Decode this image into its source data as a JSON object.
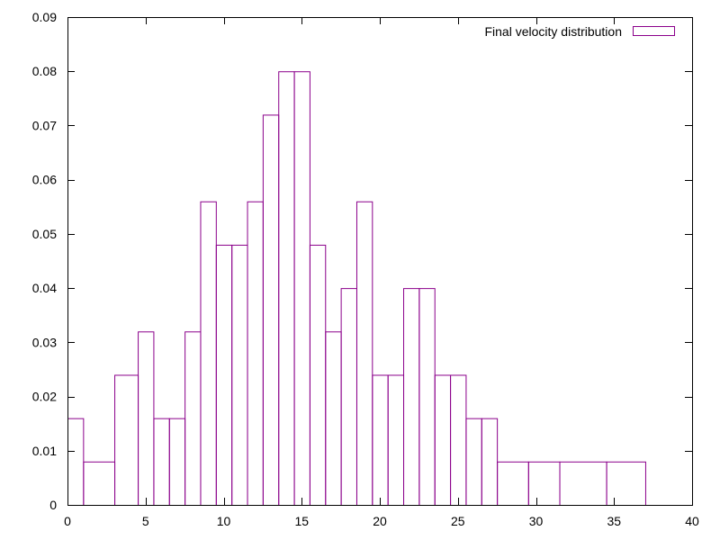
{
  "chart_data": {
    "type": "bar",
    "title": "",
    "xlabel": "",
    "ylabel": "",
    "xlim": [
      0,
      40
    ],
    "ylim": [
      0,
      0.09
    ],
    "x_ticks": [
      0,
      5,
      10,
      15,
      20,
      25,
      30,
      35,
      40
    ],
    "y_ticks": [
      0,
      0.01,
      0.02,
      0.03,
      0.04,
      0.05,
      0.06,
      0.07,
      0.08,
      0.09
    ],
    "x_tick_labels": [
      "0",
      "5",
      "10",
      "15",
      "20",
      "25",
      "30",
      "35",
      "40"
    ],
    "y_tick_labels": [
      "0",
      "0.01",
      "0.02",
      "0.03",
      "0.04",
      "0.05",
      "0.06",
      "0.07",
      "0.08",
      "0.09"
    ],
    "grid": false,
    "legend": {
      "position": "top-right"
    },
    "series": [
      {
        "name": "Final velocity distribution",
        "color": "#8b008b",
        "bins": [
          {
            "x0": 0.0,
            "x1": 1.0,
            "value": 0.016
          },
          {
            "x0": 1.0,
            "x1": 3.0,
            "value": 0.008
          },
          {
            "x0": 3.0,
            "x1": 4.5,
            "value": 0.024
          },
          {
            "x0": 4.5,
            "x1": 5.5,
            "value": 0.032
          },
          {
            "x0": 5.5,
            "x1": 6.5,
            "value": 0.016
          },
          {
            "x0": 6.5,
            "x1": 7.5,
            "value": 0.016
          },
          {
            "x0": 7.5,
            "x1": 8.5,
            "value": 0.032
          },
          {
            "x0": 8.5,
            "x1": 9.5,
            "value": 0.056
          },
          {
            "x0": 9.5,
            "x1": 10.5,
            "value": 0.048
          },
          {
            "x0": 10.5,
            "x1": 11.5,
            "value": 0.048
          },
          {
            "x0": 11.5,
            "x1": 12.5,
            "value": 0.056
          },
          {
            "x0": 12.5,
            "x1": 13.5,
            "value": 0.072
          },
          {
            "x0": 13.5,
            "x1": 14.5,
            "value": 0.08
          },
          {
            "x0": 14.5,
            "x1": 15.5,
            "value": 0.08
          },
          {
            "x0": 15.5,
            "x1": 16.5,
            "value": 0.048
          },
          {
            "x0": 16.5,
            "x1": 17.5,
            "value": 0.032
          },
          {
            "x0": 17.5,
            "x1": 18.5,
            "value": 0.04
          },
          {
            "x0": 18.5,
            "x1": 19.5,
            "value": 0.056
          },
          {
            "x0": 19.5,
            "x1": 20.5,
            "value": 0.024
          },
          {
            "x0": 20.5,
            "x1": 21.5,
            "value": 0.024
          },
          {
            "x0": 21.5,
            "x1": 22.5,
            "value": 0.04
          },
          {
            "x0": 22.5,
            "x1": 23.5,
            "value": 0.04
          },
          {
            "x0": 23.5,
            "x1": 24.5,
            "value": 0.024
          },
          {
            "x0": 24.5,
            "x1": 25.5,
            "value": 0.024
          },
          {
            "x0": 25.5,
            "x1": 26.5,
            "value": 0.016
          },
          {
            "x0": 26.5,
            "x1": 27.5,
            "value": 0.016
          },
          {
            "x0": 27.5,
            "x1": 29.5,
            "value": 0.008
          },
          {
            "x0": 29.5,
            "x1": 31.5,
            "value": 0.008
          },
          {
            "x0": 31.5,
            "x1": 34.5,
            "value": 0.008
          },
          {
            "x0": 34.5,
            "x1": 37.0,
            "value": 0.008
          }
        ]
      }
    ]
  }
}
